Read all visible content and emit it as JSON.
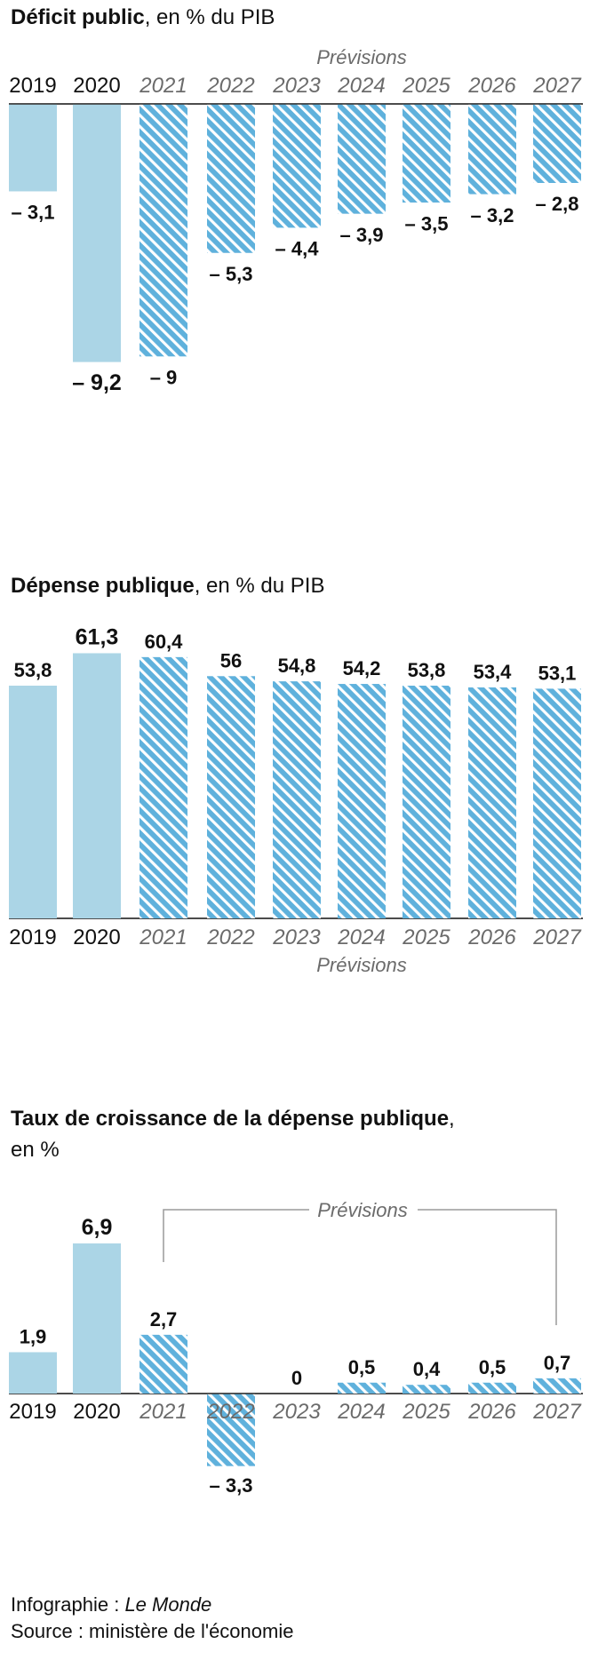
{
  "colors": {
    "bar": "#abd5e6",
    "hatch_bg": "#5fb1dc",
    "hatch_line": "#ffffff",
    "text": "#111111",
    "muted": "#6b6b6b",
    "axis": "#111111"
  },
  "chart_data": [
    {
      "type": "bar",
      "title": "Déficit public",
      "subtitle": ", en % du PIB",
      "forecast_label": "Prévisions",
      "categories": [
        "2019",
        "2020",
        "2021",
        "2022",
        "2023",
        "2024",
        "2025",
        "2026",
        "2027"
      ],
      "values": [
        -3.1,
        -9.2,
        -9,
        -5.3,
        -4.4,
        -3.9,
        -3.5,
        -3.2,
        -2.8
      ],
      "value_labels": [
        "– 3,1",
        "– 9,2",
        "– 9",
        "– 5,3",
        "– 4,4",
        "– 3,9",
        "– 3,5",
        "– 3,2",
        "– 2,8"
      ],
      "forecast": [
        false,
        false,
        true,
        true,
        true,
        true,
        true,
        true,
        true
      ],
      "emphasized": [
        false,
        true,
        false,
        false,
        false,
        false,
        false,
        false,
        false
      ],
      "ylim": [
        -9.2,
        0
      ]
    },
    {
      "type": "bar",
      "title": "Dépense publique",
      "subtitle": ", en % du PIB",
      "forecast_label": "Prévisions",
      "categories": [
        "2019",
        "2020",
        "2021",
        "2022",
        "2023",
        "2024",
        "2025",
        "2026",
        "2027"
      ],
      "values": [
        53.8,
        61.3,
        60.4,
        56,
        54.8,
        54.2,
        53.8,
        53.4,
        53.1
      ],
      "value_labels": [
        "53,8",
        "61,3",
        "60,4",
        "56",
        "54,8",
        "54,2",
        "53,8",
        "53,4",
        "53,1"
      ],
      "forecast": [
        false,
        false,
        true,
        true,
        true,
        true,
        true,
        true,
        true
      ],
      "emphasized": [
        false,
        true,
        false,
        false,
        false,
        false,
        false,
        false,
        false
      ],
      "ylim": [
        0,
        61.3
      ]
    },
    {
      "type": "bar",
      "title": "Taux de croissance de la dépense publique",
      "subtitle": ",",
      "subtitle_line2": "en %",
      "forecast_label": "Prévisions",
      "categories": [
        "2019",
        "2020",
        "2021",
        "2022",
        "2023",
        "2024",
        "2025",
        "2026",
        "2027"
      ],
      "values": [
        1.9,
        6.9,
        2.7,
        -3.3,
        0,
        0.5,
        0.4,
        0.5,
        0.7
      ],
      "value_labels": [
        "1,9",
        "6,9",
        "2,7",
        "– 3,3",
        "0",
        "0,5",
        "0,4",
        "0,5",
        "0,7"
      ],
      "forecast": [
        false,
        false,
        true,
        true,
        true,
        true,
        true,
        true,
        true
      ],
      "emphasized": [
        false,
        true,
        false,
        false,
        false,
        false,
        false,
        false,
        false
      ],
      "ylim": [
        -3.3,
        6.9
      ]
    }
  ],
  "footer": {
    "credit_prefix": "Infographie : ",
    "credit_name": "Le Monde",
    "source": "Source : ministère de l'économie"
  }
}
